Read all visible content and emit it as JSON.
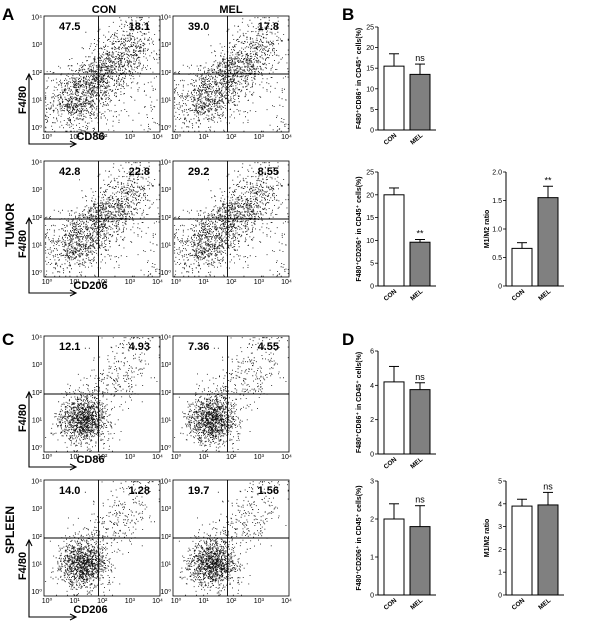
{
  "panels": {
    "a": "A",
    "b": "B",
    "c": "C",
    "d": "D"
  },
  "columns": {
    "con": "CON",
    "mel": "MEL"
  },
  "row_labels": {
    "tumor": "TUMOR",
    "spleen": "SPLEEN"
  },
  "axes": {
    "f480": "F4/80",
    "cd86": "CD86",
    "cd206": "CD206"
  },
  "flow_plots": [
    {
      "id": "tumor-cd86-con",
      "ul": "47.5",
      "ur": "18.1"
    },
    {
      "id": "tumor-cd86-mel",
      "ul": "39.0",
      "ur": "17.8"
    },
    {
      "id": "tumor-cd206-con",
      "ul": "42.8",
      "ur": "22.8"
    },
    {
      "id": "tumor-cd206-mel",
      "ul": "29.2",
      "ur": "8.55"
    },
    {
      "id": "spleen-cd86-con",
      "ul": "12.1",
      "ur": "4.93"
    },
    {
      "id": "spleen-cd86-mel",
      "ul": "7.36",
      "ur": "4.55"
    },
    {
      "id": "spleen-cd206-con",
      "ul": "14.0",
      "ur": "1.28"
    },
    {
      "id": "spleen-cd206-mel",
      "ul": "19.7",
      "ur": "1.56"
    }
  ],
  "chart_data": [
    {
      "id": "b1",
      "type": "bar",
      "categories": [
        "CON",
        "MEL"
      ],
      "values": [
        15.5,
        13.5
      ],
      "errors": [
        3.0,
        2.5
      ],
      "ylabel": "F480⁺CD86⁺ in CD45⁺ cells(%)",
      "ylim": [
        0,
        25
      ],
      "yticks": [
        "0",
        "5",
        "10",
        "15",
        "20",
        "25"
      ],
      "significance": [
        "",
        "ns"
      ],
      "colors": [
        "#ffffff",
        "#808080"
      ]
    },
    {
      "id": "b2",
      "type": "bar",
      "categories": [
        "CON",
        "MEL"
      ],
      "values": [
        20.0,
        9.6
      ],
      "errors": [
        1.5,
        0.6
      ],
      "ylabel": "F480⁺CD206⁺ in CD45⁺ cells(%)",
      "ylim": [
        0,
        25
      ],
      "yticks": [
        "0",
        "5",
        "10",
        "15",
        "20",
        "25"
      ],
      "significance": [
        "",
        "**"
      ],
      "colors": [
        "#ffffff",
        "#808080"
      ]
    },
    {
      "id": "b3",
      "type": "bar",
      "categories": [
        "CON",
        "MEL"
      ],
      "values": [
        0.66,
        1.55
      ],
      "errors": [
        0.1,
        0.2
      ],
      "ylabel": "M1/M2 ratio",
      "ylim": [
        0,
        2.0
      ],
      "yticks": [
        "0",
        "0.5",
        "1.0",
        "1.5",
        "2.0"
      ],
      "significance": [
        "",
        "**"
      ],
      "colors": [
        "#ffffff",
        "#808080"
      ]
    },
    {
      "id": "d1",
      "type": "bar",
      "categories": [
        "CON",
        "MEL"
      ],
      "values": [
        4.2,
        3.75
      ],
      "errors": [
        0.9,
        0.4
      ],
      "ylabel": "F480⁺CD86⁺ in CD45⁺ cells(%)",
      "ylim": [
        0,
        6
      ],
      "yticks": [
        "0",
        "2",
        "4",
        "6"
      ],
      "significance": [
        "",
        "ns"
      ],
      "colors": [
        "#ffffff",
        "#808080"
      ]
    },
    {
      "id": "d2",
      "type": "bar",
      "categories": [
        "CON",
        "MEL"
      ],
      "values": [
        2.0,
        1.8
      ],
      "errors": [
        0.4,
        0.55
      ],
      "ylabel": "F480⁺CD206⁺ in CD45⁺ cells(%)",
      "ylim": [
        0,
        3
      ],
      "yticks": [
        "0",
        "1",
        "2",
        "3"
      ],
      "significance": [
        "",
        "ns"
      ],
      "colors": [
        "#ffffff",
        "#808080"
      ]
    },
    {
      "id": "d3",
      "type": "bar",
      "categories": [
        "CON",
        "MEL"
      ],
      "values": [
        3.9,
        3.95
      ],
      "errors": [
        0.3,
        0.55
      ],
      "ylabel": "M1/M2 ratio",
      "ylim": [
        0,
        5
      ],
      "yticks": [
        "0",
        "1",
        "2",
        "3",
        "4",
        "5"
      ],
      "significance": [
        "",
        "ns"
      ],
      "colors": [
        "#ffffff",
        "#808080"
      ]
    }
  ]
}
